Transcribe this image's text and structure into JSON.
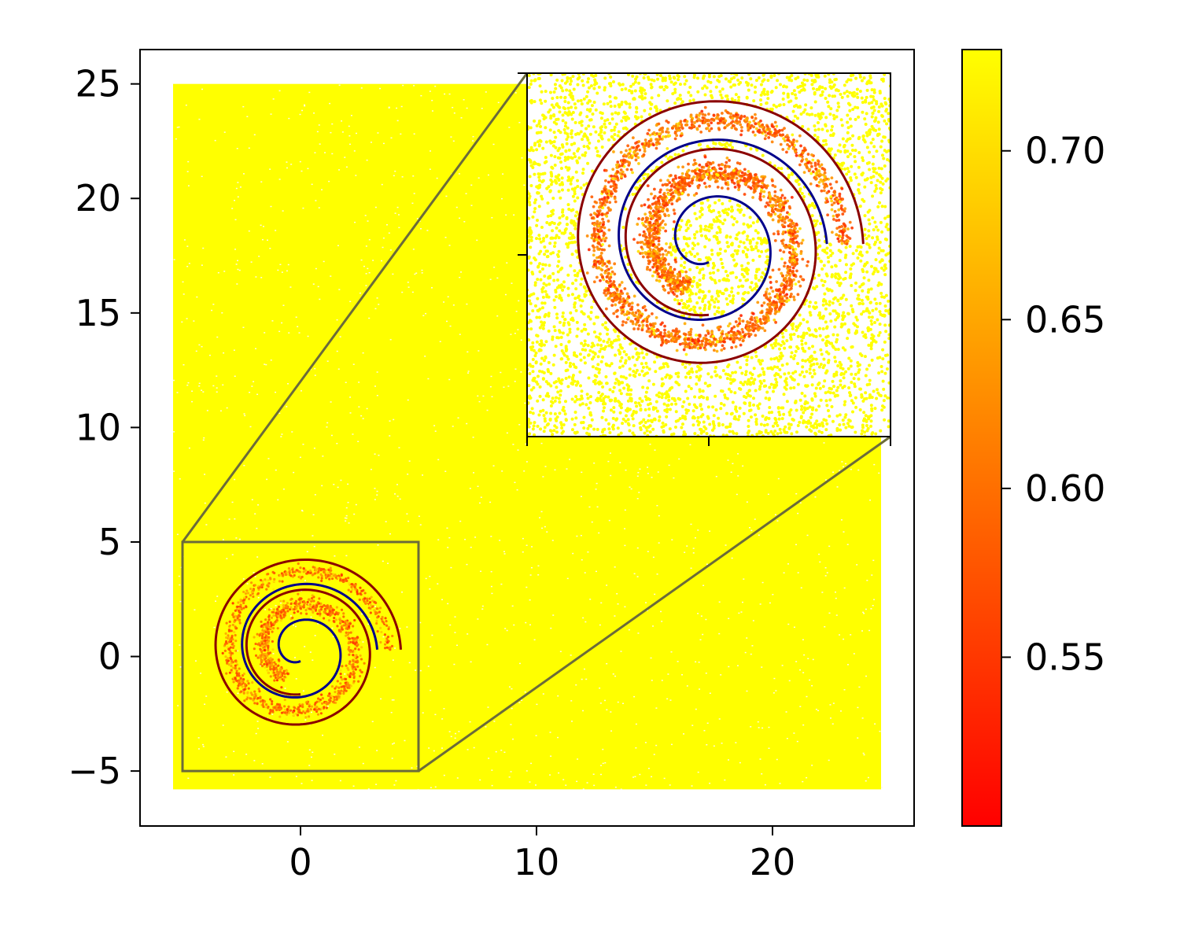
{
  "chart_data": {
    "type": "scatter",
    "title": "",
    "xlabel": "",
    "ylabel": "",
    "xlim": [
      -6.8,
      26.0
    ],
    "ylim": [
      -7.4,
      26.5
    ],
    "x_ticks": [
      0,
      10,
      20
    ],
    "x_tick_labels": [
      "0",
      "10",
      "20"
    ],
    "y_ticks": [
      -5,
      0,
      5,
      10,
      15,
      20,
      25
    ],
    "y_tick_labels": [
      "−5",
      "0",
      "5",
      "10",
      "15",
      "20",
      "25"
    ],
    "grid": false,
    "legend": "none",
    "scatter_region": {
      "x": [
        -5.4,
        24.6
      ],
      "y": [
        -5.8,
        25.0
      ]
    },
    "point_value_background": 0.73,
    "spiral_center": [
      0.0,
      0.3
    ],
    "spirals": [
      {
        "color": "#00008b",
        "r0": 0.5,
        "r1": 3.25,
        "theta_start_deg": 270,
        "sweep_deg": -630
      },
      {
        "color": "#8b0000",
        "r0": 1.95,
        "r1": 4.25,
        "theta_start_deg": 270,
        "sweep_deg": -630
      }
    ],
    "zoom_box": {
      "x": [
        -5.0,
        5.0
      ],
      "y": [
        -5.0,
        5.0
      ]
    },
    "inset": {
      "position": "upper-right",
      "xlim": [
        -5.0,
        5.0
      ],
      "ylim": [
        -5.0,
        5.0
      ],
      "x_ticks": [
        -5,
        0,
        5
      ],
      "y_ticks": [
        0,
        5
      ]
    },
    "colorbar": {
      "cmap": "autumn",
      "range": [
        0.5,
        0.73
      ],
      "ticks": [
        0.55,
        0.6,
        0.65,
        0.7
      ],
      "tick_labels": [
        "0.55",
        "0.60",
        "0.65",
        "0.70"
      ],
      "colors": [
        "#ff0000",
        "#ffff00"
      ]
    }
  }
}
